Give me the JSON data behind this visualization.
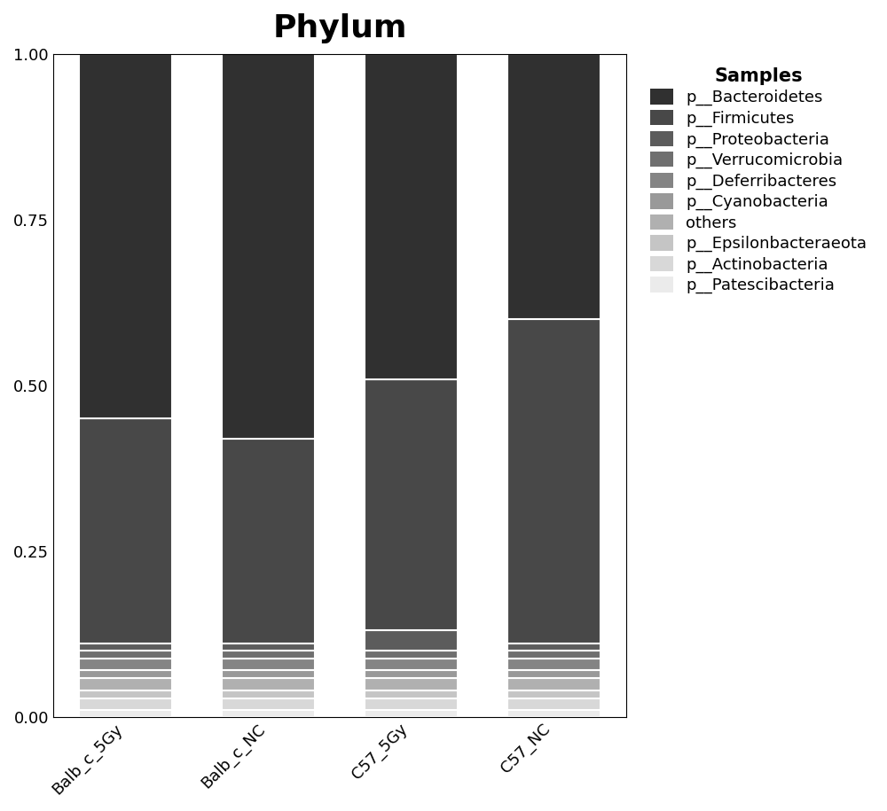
{
  "title": "Phylum",
  "legend_title": "Samples",
  "categories": [
    "Balb_c_5Gy",
    "Balb_c_NC",
    "C57_5Gy",
    "C57_NC"
  ],
  "species": [
    "p__Patescibacteria",
    "p__Actinobacteria",
    "p__Epsilonbacteraeota",
    "others",
    "p__Cyanobacteria",
    "p__Deferribacteres",
    "p__Verrucomicrobia",
    "p__Proteobacteria",
    "p__Firmicutes",
    "p__Bacteroidetes"
  ],
  "colors": [
    "#ebebeb",
    "#d8d8d8",
    "#c5c5c5",
    "#b0b0b0",
    "#999999",
    "#848484",
    "#6f6f6f",
    "#5c5c5c",
    "#484848",
    "#303030"
  ],
  "data": {
    "Balb_c_5Gy": [
      0.01,
      0.018,
      0.012,
      0.018,
      0.012,
      0.018,
      0.012,
      0.01,
      0.34,
      0.55
    ],
    "Balb_c_NC": [
      0.01,
      0.018,
      0.012,
      0.018,
      0.012,
      0.018,
      0.012,
      0.01,
      0.31,
      0.59
    ],
    "C57_5Gy": [
      0.01,
      0.018,
      0.012,
      0.018,
      0.012,
      0.018,
      0.012,
      0.03,
      0.38,
      0.49
    ],
    "C57_NC": [
      0.01,
      0.018,
      0.012,
      0.018,
      0.012,
      0.018,
      0.012,
      0.01,
      0.49,
      0.4
    ]
  },
  "ylim": [
    0.0,
    1.0
  ],
  "yticks": [
    0.0,
    0.25,
    0.5,
    0.75,
    1.0
  ],
  "bar_width": 0.65,
  "figsize": [
    10.0,
    9.15
  ],
  "dpi": 100,
  "title_fontsize": 26,
  "tick_fontsize": 13,
  "legend_fontsize": 13,
  "legend_title_fontsize": 15,
  "background_color": "#ffffff",
  "bar_edge_color": "white",
  "bar_edge_width": 1.5
}
